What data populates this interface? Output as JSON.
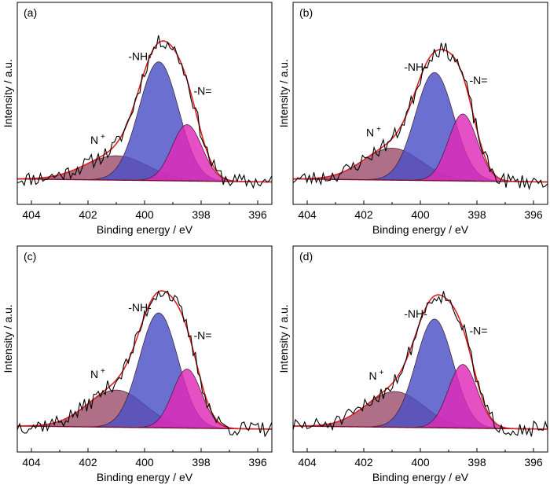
{
  "figure": {
    "background": "#ffffff"
  },
  "chart_data": [
    {
      "type": "area",
      "panel_label": "(a)",
      "xlabel": "Binding energy / eV",
      "ylabel": "Intensity / a.u.",
      "x_reversed": true,
      "xlim": [
        404.5,
        395.5
      ],
      "ylim": [
        0,
        1.0
      ],
      "x_ticks": [
        404,
        402,
        400,
        398,
        396
      ],
      "x_tick_labels": [
        "404",
        "402",
        "400",
        "398",
        "396"
      ],
      "y_ticks_shown": false,
      "components": [
        {
          "label": "N⁺",
          "label_text": "N",
          "label_superscript": "+",
          "center_eV": 401.0,
          "height": 0.16,
          "fwhm_eV": 2.6,
          "color": "#9e4f6d"
        },
        {
          "label": "-NH-",
          "label_text": "-NH-",
          "label_superscript": "",
          "center_eV": 399.5,
          "height": 0.78,
          "fwhm_eV": 1.65,
          "color": "#4a4fc4"
        },
        {
          "label": "-N=",
          "label_text": "-N=",
          "label_superscript": "",
          "center_eV": 398.5,
          "height": 0.37,
          "fwhm_eV": 1.25,
          "color": "#e02ab8"
        }
      ],
      "background_line": {
        "value_at_404.5": 0.0,
        "value_at_395.5": -0.02,
        "color": "#7a1030"
      },
      "envelope_color": "#e02020",
      "experimental_color": "#000000",
      "noise_seed": 11,
      "noise_amplitude": 0.05
    },
    {
      "type": "area",
      "panel_label": "(b)",
      "xlabel": "Binding energy / eV",
      "ylabel": "Intensity / a.u.",
      "x_reversed": true,
      "xlim": [
        404.5,
        395.5
      ],
      "ylim": [
        0,
        1.0
      ],
      "x_ticks": [
        404,
        402,
        400,
        398,
        396
      ],
      "x_tick_labels": [
        "404",
        "402",
        "400",
        "398",
        "396"
      ],
      "y_ticks_shown": false,
      "components": [
        {
          "label": "N⁺",
          "label_text": "N",
          "label_superscript": "+",
          "center_eV": 401.0,
          "height": 0.21,
          "fwhm_eV": 2.4,
          "color": "#9e4f6d"
        },
        {
          "label": "-NH-",
          "label_text": "-NH-",
          "label_superscript": "",
          "center_eV": 399.5,
          "height": 0.71,
          "fwhm_eV": 1.6,
          "color": "#4a4fc4"
        },
        {
          "label": "-N=",
          "label_text": "-N=",
          "label_superscript": "",
          "center_eV": 398.5,
          "height": 0.44,
          "fwhm_eV": 1.2,
          "color": "#e02ab8"
        }
      ],
      "background_line": {
        "value_at_404.5": 0.0,
        "value_at_395.5": -0.02,
        "color": "#7a1030"
      },
      "envelope_color": "#e02020",
      "experimental_color": "#000000",
      "noise_seed": 23,
      "noise_amplitude": 0.05
    },
    {
      "type": "area",
      "panel_label": "(c)",
      "xlabel": "Binding energy / eV",
      "ylabel": "Intensity / a.u.",
      "x_reversed": true,
      "xlim": [
        404.5,
        395.5
      ],
      "ylim": [
        0,
        1.0
      ],
      "x_ticks": [
        404,
        402,
        400,
        398,
        396
      ],
      "x_tick_labels": [
        "404",
        "402",
        "400",
        "398",
        "396"
      ],
      "y_ticks_shown": false,
      "components": [
        {
          "label": "N⁺",
          "label_text": "N",
          "label_superscript": "+",
          "center_eV": 401.0,
          "height": 0.24,
          "fwhm_eV": 2.4,
          "color": "#9e4f6d"
        },
        {
          "label": "-NH-",
          "label_text": "-NH-",
          "label_superscript": "",
          "center_eV": 399.5,
          "height": 0.74,
          "fwhm_eV": 1.6,
          "color": "#4a4fc4"
        },
        {
          "label": "-N=",
          "label_text": "-N=",
          "label_superscript": "",
          "center_eV": 398.5,
          "height": 0.38,
          "fwhm_eV": 1.2,
          "color": "#e02ab8"
        }
      ],
      "background_line": {
        "value_at_404.5": 0.0,
        "value_at_395.5": -0.02,
        "color": "#7a1030"
      },
      "envelope_color": "#e02020",
      "experimental_color": "#000000",
      "noise_seed": 37,
      "noise_amplitude": 0.05
    },
    {
      "type": "area",
      "panel_label": "(d)",
      "xlabel": "Binding energy / eV",
      "ylabel": "Intensity / a.u.",
      "x_reversed": true,
      "xlim": [
        404.5,
        395.5
      ],
      "ylim": [
        0,
        1.0
      ],
      "x_ticks": [
        404,
        402,
        400,
        398,
        396
      ],
      "x_tick_labels": [
        "404",
        "402",
        "400",
        "398",
        "396"
      ],
      "y_ticks_shown": false,
      "components": [
        {
          "label": "N⁺",
          "label_text": "N",
          "label_superscript": "+",
          "center_eV": 400.9,
          "height": 0.23,
          "fwhm_eV": 2.4,
          "color": "#9e4f6d"
        },
        {
          "label": "-NH-",
          "label_text": "-NH-",
          "label_superscript": "",
          "center_eV": 399.5,
          "height": 0.7,
          "fwhm_eV": 1.55,
          "color": "#4a4fc4"
        },
        {
          "label": "-N=",
          "label_text": "-N=",
          "label_superscript": "",
          "center_eV": 398.5,
          "height": 0.41,
          "fwhm_eV": 1.2,
          "color": "#e02ab8"
        }
      ],
      "background_line": {
        "value_at_404.5": 0.0,
        "value_at_395.5": -0.02,
        "color": "#7a1030"
      },
      "envelope_color": "#e02020",
      "experimental_color": "#000000",
      "noise_seed": 51,
      "noise_amplitude": 0.05
    }
  ]
}
